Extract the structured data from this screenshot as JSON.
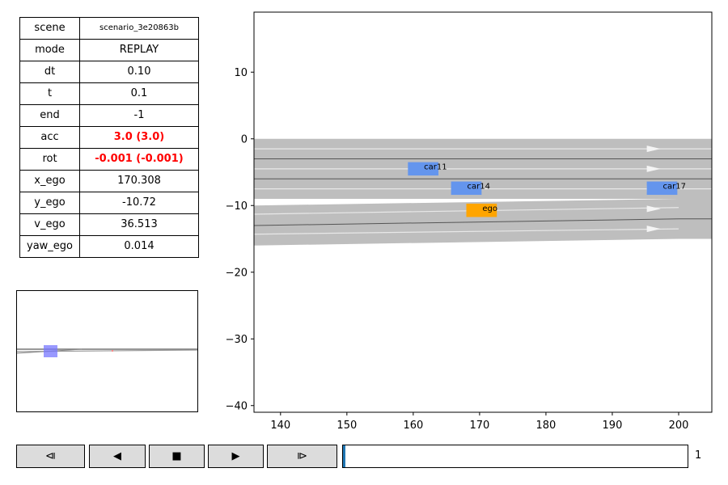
{
  "info_table": [
    {
      "key": "scene",
      "value": "scenario_3e20863b",
      "style": "small"
    },
    {
      "key": "mode",
      "value": "REPLAY",
      "style": ""
    },
    {
      "key": "dt",
      "value": "0.10",
      "style": ""
    },
    {
      "key": "t",
      "value": "0.1",
      "style": ""
    },
    {
      "key": "end",
      "value": "-1",
      "style": ""
    },
    {
      "key": "acc",
      "value": "3.0 (3.0)",
      "style": "red"
    },
    {
      "key": "rot",
      "value": "-0.001 (-0.001)",
      "style": "red"
    },
    {
      "key": "x_ego",
      "value": "170.308",
      "style": ""
    },
    {
      "key": "y_ego",
      "value": "-10.72",
      "style": ""
    },
    {
      "key": "v_ego",
      "value": "36.513",
      "style": ""
    },
    {
      "key": "yaw_ego",
      "value": "0.014",
      "style": ""
    }
  ],
  "controls": {
    "step_back_icon": "⧏",
    "play_reverse_icon": "◀",
    "stop_icon": "■",
    "play_icon": "▶",
    "step_forward_icon": "⧐"
  },
  "slider": {
    "value": "1",
    "fraction": 0.005
  },
  "plot": {
    "xlim": [
      136,
      205
    ],
    "ylim": [
      -41,
      19
    ],
    "x_ticks": [
      "140",
      "150",
      "160",
      "170",
      "180",
      "190",
      "200"
    ],
    "y_ticks": [
      "10",
      "0",
      "−10",
      "−20",
      "−30",
      "−40"
    ],
    "road_color": "#bebebe",
    "vehicles": [
      {
        "label": "car11",
        "x": 161.5,
        "y": -4.5,
        "color": "#6495ed"
      },
      {
        "label": "car14",
        "x": 168.0,
        "y": -7.4,
        "color": "#6495ed"
      },
      {
        "label": "ego",
        "x": 170.3,
        "y": -10.72,
        "color": "#ffa500"
      },
      {
        "label": "car17",
        "x": 197.5,
        "y": -7.4,
        "color": "#6495ed"
      }
    ]
  },
  "minimap": {
    "marker_color": "#7777ff"
  }
}
